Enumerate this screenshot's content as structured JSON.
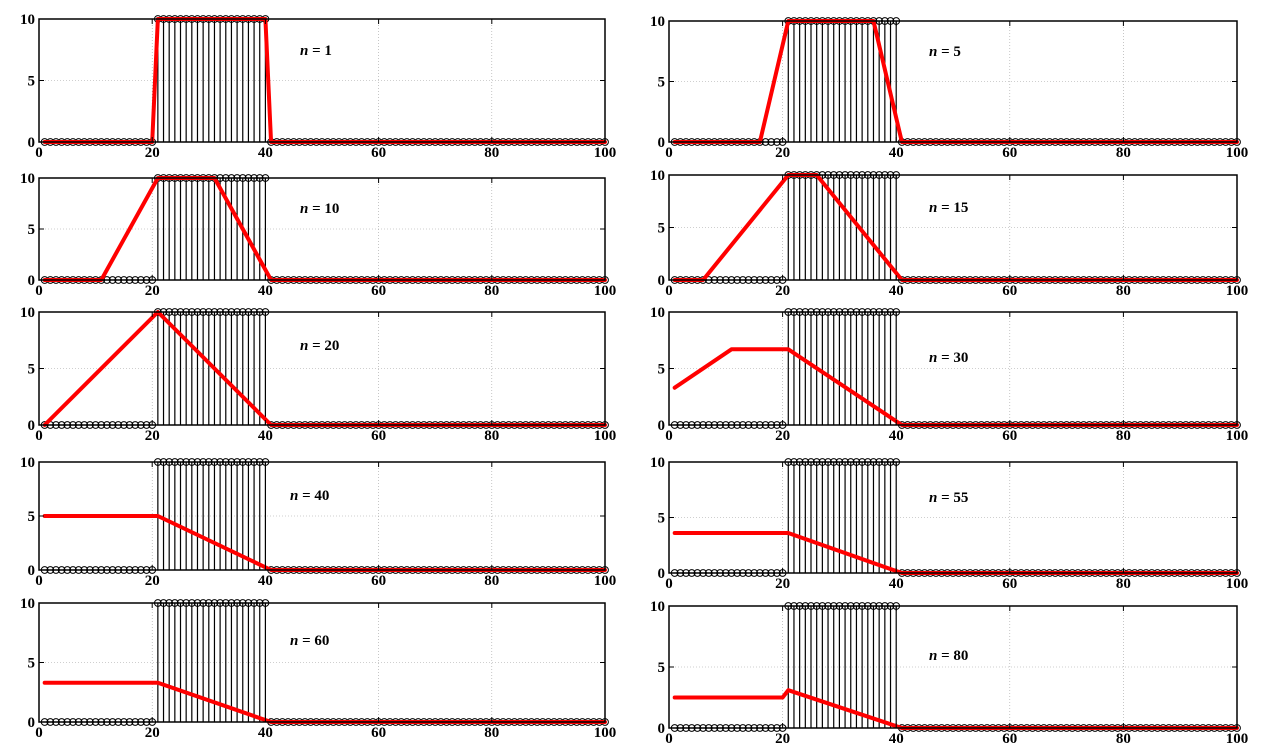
{
  "figure": {
    "signal": {
      "x_start": 1,
      "x_end": 100,
      "on_start": 21,
      "on_end": 40,
      "on_value": 10,
      "off_value": 0
    },
    "chart_data": [
      {
        "type": "line",
        "label_var": "n",
        "label_eq": " = ",
        "label_value": "1",
        "xlim": [
          0,
          100
        ],
        "ylim": [
          0,
          10
        ],
        "xticks": [
          "0",
          "20",
          "40",
          "60",
          "80",
          "100"
        ],
        "yticks": [
          "0",
          "5",
          "10"
        ],
        "grid": true,
        "series": [
          {
            "color": "#ff0000",
            "x": [
              1,
              20,
              21,
              40,
              41,
              100
            ],
            "y": [
              0,
              0,
              10,
              10,
              0,
              0
            ]
          }
        ]
      },
      {
        "type": "line",
        "label_var": "n",
        "label_eq": " = ",
        "label_value": "5",
        "xlim": [
          0,
          100
        ],
        "ylim": [
          0,
          10
        ],
        "xticks": [
          "0",
          "20",
          "40",
          "60",
          "80",
          "100"
        ],
        "yticks": [
          "0",
          "5",
          "10"
        ],
        "grid": true,
        "series": [
          {
            "color": "#ff0000",
            "x": [
              1,
              16,
              21,
              36,
              41,
              100
            ],
            "y": [
              0,
              0,
              10,
              10,
              0,
              0
            ]
          }
        ]
      },
      {
        "type": "line",
        "label_var": "n",
        "label_eq": " = ",
        "label_value": "10",
        "xlim": [
          0,
          100
        ],
        "ylim": [
          0,
          10
        ],
        "xticks": [
          "0",
          "20",
          "40",
          "60",
          "80",
          "100"
        ],
        "yticks": [
          "0",
          "5",
          "10"
        ],
        "grid": true,
        "series": [
          {
            "color": "#ff0000",
            "x": [
              1,
              11,
              21,
              31,
              41,
              100
            ],
            "y": [
              0,
              0,
              10,
              10,
              0,
              0
            ]
          }
        ]
      },
      {
        "type": "line",
        "label_var": "n",
        "label_eq": " = ",
        "label_value": "15",
        "xlim": [
          0,
          100
        ],
        "ylim": [
          0,
          10
        ],
        "xticks": [
          "0",
          "20",
          "40",
          "60",
          "80",
          "100"
        ],
        "yticks": [
          "0",
          "5",
          "10"
        ],
        "grid": true,
        "series": [
          {
            "color": "#ff0000",
            "x": [
              1,
              6,
              21,
              26,
              41,
              100
            ],
            "y": [
              0,
              0,
              10,
              10,
              0,
              0
            ]
          }
        ]
      },
      {
        "type": "line",
        "label_var": "n",
        "label_eq": " = ",
        "label_value": "20",
        "xlim": [
          0,
          100
        ],
        "ylim": [
          0,
          10
        ],
        "xticks": [
          "0",
          "20",
          "40",
          "60",
          "80",
          "100"
        ],
        "yticks": [
          "0",
          "5",
          "10"
        ],
        "grid": true,
        "series": [
          {
            "color": "#ff0000",
            "x": [
              1,
              21,
              41,
              100
            ],
            "y": [
              0,
              10,
              0,
              0
            ]
          }
        ]
      },
      {
        "type": "line",
        "label_var": "n",
        "label_eq": " = ",
        "label_value": "30",
        "xlim": [
          0,
          100
        ],
        "ylim": [
          0,
          10
        ],
        "xticks": [
          "0",
          "20",
          "40",
          "60",
          "80",
          "100"
        ],
        "yticks": [
          "0",
          "5",
          "10"
        ],
        "grid": true,
        "series": [
          {
            "color": "#ff0000",
            "x": [
              1,
              11,
              21,
              41,
              100
            ],
            "y": [
              3.3,
              6.7,
              6.7,
              0,
              0
            ]
          }
        ]
      },
      {
        "type": "line",
        "label_var": "n",
        "label_eq": " = ",
        "label_value": "40",
        "xlim": [
          0,
          100
        ],
        "ylim": [
          0,
          10
        ],
        "xticks": [
          "0",
          "20",
          "40",
          "60",
          "80",
          "100"
        ],
        "yticks": [
          "0",
          "5",
          "10"
        ],
        "grid": true,
        "series": [
          {
            "color": "#ff0000",
            "x": [
              1,
              21,
              41,
              100
            ],
            "y": [
              5,
              5,
              0,
              0
            ]
          }
        ]
      },
      {
        "type": "line",
        "label_var": "n",
        "label_eq": " = ",
        "label_value": "55",
        "xlim": [
          0,
          100
        ],
        "ylim": [
          0,
          10
        ],
        "xticks": [
          "0",
          "20",
          "40",
          "60",
          "80",
          "100"
        ],
        "yticks": [
          "0",
          "5",
          "10"
        ],
        "grid": true,
        "series": [
          {
            "color": "#ff0000",
            "x": [
              1,
              21,
              41,
              100
            ],
            "y": [
              3.6,
              3.6,
              0,
              0
            ]
          }
        ]
      },
      {
        "type": "line",
        "label_var": "n",
        "label_eq": " = ",
        "label_value": "60",
        "xlim": [
          0,
          100
        ],
        "ylim": [
          0,
          10
        ],
        "xticks": [
          "0",
          "20",
          "40",
          "60",
          "80",
          "100"
        ],
        "yticks": [
          "0",
          "5",
          "10"
        ],
        "grid": true,
        "series": [
          {
            "color": "#ff0000",
            "x": [
              1,
              21,
              41,
              100
            ],
            "y": [
              3.3,
              3.3,
              0,
              0
            ]
          }
        ]
      },
      {
        "type": "line",
        "label_var": "n",
        "label_eq": " = ",
        "label_value": "80",
        "xlim": [
          0,
          100
        ],
        "ylim": [
          0,
          10
        ],
        "xticks": [
          "0",
          "20",
          "40",
          "60",
          "80",
          "100"
        ],
        "yticks": [
          "0",
          "5",
          "10"
        ],
        "grid": true,
        "series": [
          {
            "color": "#ff0000",
            "x": [
              1,
              20,
              21,
              41,
              100
            ],
            "y": [
              2.5,
              2.5,
              3.1,
              0,
              0
            ]
          }
        ]
      }
    ]
  }
}
